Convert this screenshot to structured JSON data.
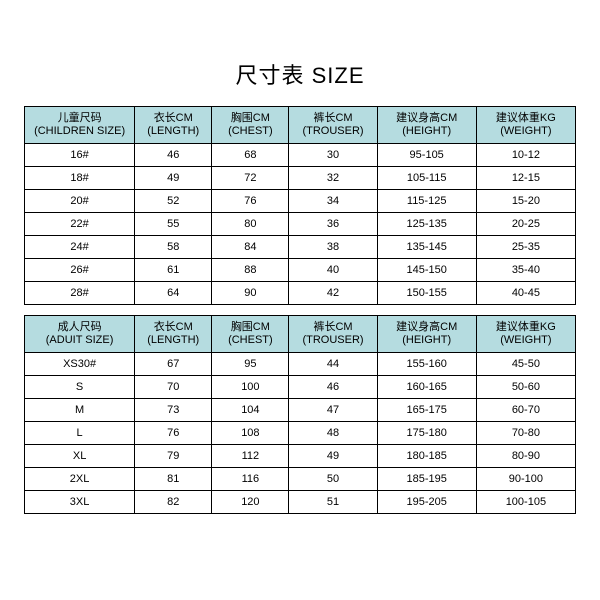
{
  "title": "尺寸表 SIZE",
  "colors": {
    "header_bg": "#b5dce0",
    "border": "#000000",
    "background": "#ffffff",
    "text": "#000000"
  },
  "col_widths_pct": [
    20,
    14,
    14,
    16,
    18,
    18
  ],
  "children": {
    "columns": [
      {
        "cn": "儿童尺码",
        "en": "(CHILDREN SIZE)"
      },
      {
        "cn": "衣长CM",
        "en": "(LENGTH)"
      },
      {
        "cn": "胸围CM",
        "en": "(CHEST)"
      },
      {
        "cn": "裤长CM",
        "en": "(TROUSER)"
      },
      {
        "cn": "建议身高CM",
        "en": "(HEIGHT)"
      },
      {
        "cn": "建议体重KG",
        "en": "(WEIGHT)"
      }
    ],
    "rows": [
      [
        "16#",
        "46",
        "68",
        "30",
        "95-105",
        "10-12"
      ],
      [
        "18#",
        "49",
        "72",
        "32",
        "105-115",
        "12-15"
      ],
      [
        "20#",
        "52",
        "76",
        "34",
        "115-125",
        "15-20"
      ],
      [
        "22#",
        "55",
        "80",
        "36",
        "125-135",
        "20-25"
      ],
      [
        "24#",
        "58",
        "84",
        "38",
        "135-145",
        "25-35"
      ],
      [
        "26#",
        "61",
        "88",
        "40",
        "145-150",
        "35-40"
      ],
      [
        "28#",
        "64",
        "90",
        "42",
        "150-155",
        "40-45"
      ]
    ]
  },
  "adult": {
    "columns": [
      {
        "cn": "成人尺码",
        "en": "(ADUIT SIZE)"
      },
      {
        "cn": "衣长CM",
        "en": "(LENGTH)"
      },
      {
        "cn": "胸围CM",
        "en": "(CHEST)"
      },
      {
        "cn": "裤长CM",
        "en": "(TROUSER)"
      },
      {
        "cn": "建议身高CM",
        "en": "(HEIGHT)"
      },
      {
        "cn": "建议体重KG",
        "en": "(WEIGHT)"
      }
    ],
    "rows": [
      [
        "XS30#",
        "67",
        "95",
        "44",
        "155-160",
        "45-50"
      ],
      [
        "S",
        "70",
        "100",
        "46",
        "160-165",
        "50-60"
      ],
      [
        "M",
        "73",
        "104",
        "47",
        "165-175",
        "60-70"
      ],
      [
        "L",
        "76",
        "108",
        "48",
        "175-180",
        "70-80"
      ],
      [
        "XL",
        "79",
        "112",
        "49",
        "180-185",
        "80-90"
      ],
      [
        "2XL",
        "81",
        "116",
        "50",
        "185-195",
        "90-100"
      ],
      [
        "3XL",
        "82",
        "120",
        "51",
        "195-205",
        "100-105"
      ]
    ]
  }
}
